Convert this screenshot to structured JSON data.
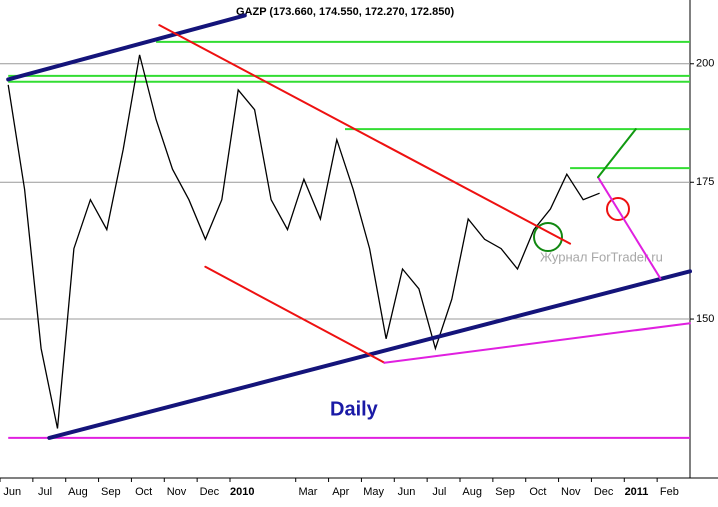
{
  "chart_data": {
    "type": "line",
    "title": "GAZP (173.660, 174.550, 172.270, 172.850)",
    "annotations": [
      "Daily",
      "Журнал ForTrader.ru"
    ],
    "categories": [
      "Jun",
      null,
      "Jul",
      null,
      "Aug",
      null,
      "Sep",
      null,
      "Oct",
      null,
      "Nov",
      null,
      "Dec",
      null,
      "2010",
      null,
      null,
      null,
      "Mar",
      null,
      "Apr",
      null,
      "May",
      null,
      "Jun",
      null,
      "Jul",
      null,
      "Aug",
      null,
      "Sep",
      null,
      "Oct",
      null,
      "Nov",
      null,
      "Dec",
      null,
      "2011",
      null,
      "Feb",
      null
    ],
    "series": [
      {
        "color": "#000000",
        "values": [
          195.3,
          173.6,
          145.1,
          132.6,
          162.4,
          171.6,
          165.9,
          181.6,
          202.0,
          187.8,
          177.6,
          171.6,
          164.1,
          171.6,
          194.2,
          189.9,
          171.6,
          165.9,
          175.6,
          167.9,
          183.6,
          173.6,
          162.4,
          146.7,
          158.7,
          155.2,
          145.1,
          153.4,
          167.9,
          164.1,
          162.4,
          158.7,
          165.9,
          169.8,
          176.6,
          171.6,
          172.85,
          null,
          null,
          null,
          null,
          null
        ]
      }
    ],
    "ylim": [
      125.4,
      214.9
    ],
    "yticks": [
      150,
      175,
      200
    ],
    "log_scale": true,
    "grid": true,
    "levels": [
      {
        "color": "#33dd33",
        "value": 205.0,
        "from": 9
      },
      {
        "color": "#33dd33",
        "value": 197.3,
        "from": 0
      },
      {
        "color": "#33dd33",
        "value": 196.0,
        "from": 0
      },
      {
        "color": "#33dd33",
        "value": 185.8,
        "from": 20.5
      },
      {
        "color": "#33dd33",
        "value": 177.8,
        "from": 34.2
      },
      {
        "color": "#e020e0",
        "value": 131.2,
        "from": 0
      }
    ],
    "trendlines": [
      {
        "color": "#14147a",
        "width": 4,
        "from": [
          2.5,
          131.2
        ],
        "to": [
          41.5,
          158.3
        ]
      },
      {
        "color": "#14147a",
        "width": 4,
        "from": [
          0,
          196.5
        ],
        "to": [
          14.4,
          211.2
        ]
      },
      {
        "color": "#ee1111",
        "width": 2,
        "from": [
          9.2,
          208.9
        ],
        "to": [
          34.2,
          163.3
        ]
      },
      {
        "color": "#ee1111",
        "width": 2,
        "from": [
          12,
          159.1
        ],
        "to": [
          22.9,
          142.8
        ]
      },
      {
        "color": "#e020e0",
        "width": 2,
        "from": [
          22.9,
          142.8
        ],
        "to": [
          41.5,
          149.3
        ]
      },
      {
        "color": "#e020e0",
        "width": 2,
        "from": [
          35.9,
          176.0
        ],
        "to": [
          39.7,
          157.0
        ]
      },
      {
        "color": "#119911",
        "width": 2,
        "from": [
          35.9,
          176.0
        ],
        "to": [
          38.2,
          185.8
        ]
      }
    ]
  }
}
